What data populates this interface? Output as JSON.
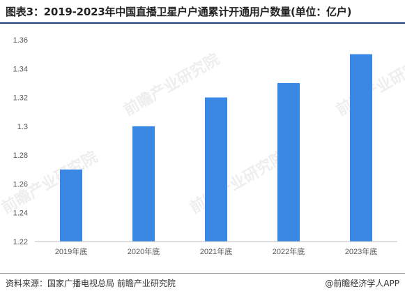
{
  "header": {
    "title": "图表3：2019-2023年中国直播卫星户户通累计开通用户数量(单位：亿户)"
  },
  "footer": {
    "source": "资料来源：国家广播电视总局 前瞻产业研究院",
    "credit": "@前瞻经济学人APP"
  },
  "watermark": {
    "text": "前瞻产业研究院"
  },
  "colors": {
    "bar": "#3b87e4",
    "title_rule": "#1f3f77"
  },
  "chart_data": {
    "type": "bar",
    "categories": [
      "2019年底",
      "2020年底",
      "2021年底",
      "2022年底",
      "2023年底"
    ],
    "values": [
      1.27,
      1.3,
      1.32,
      1.33,
      1.35
    ],
    "ylim": [
      1.22,
      1.36
    ],
    "yticks": [
      "1.22",
      "1.24",
      "1.26",
      "1.28",
      "1.3",
      "1.32",
      "1.34",
      "1.36"
    ],
    "grid": false,
    "legend": "none"
  }
}
